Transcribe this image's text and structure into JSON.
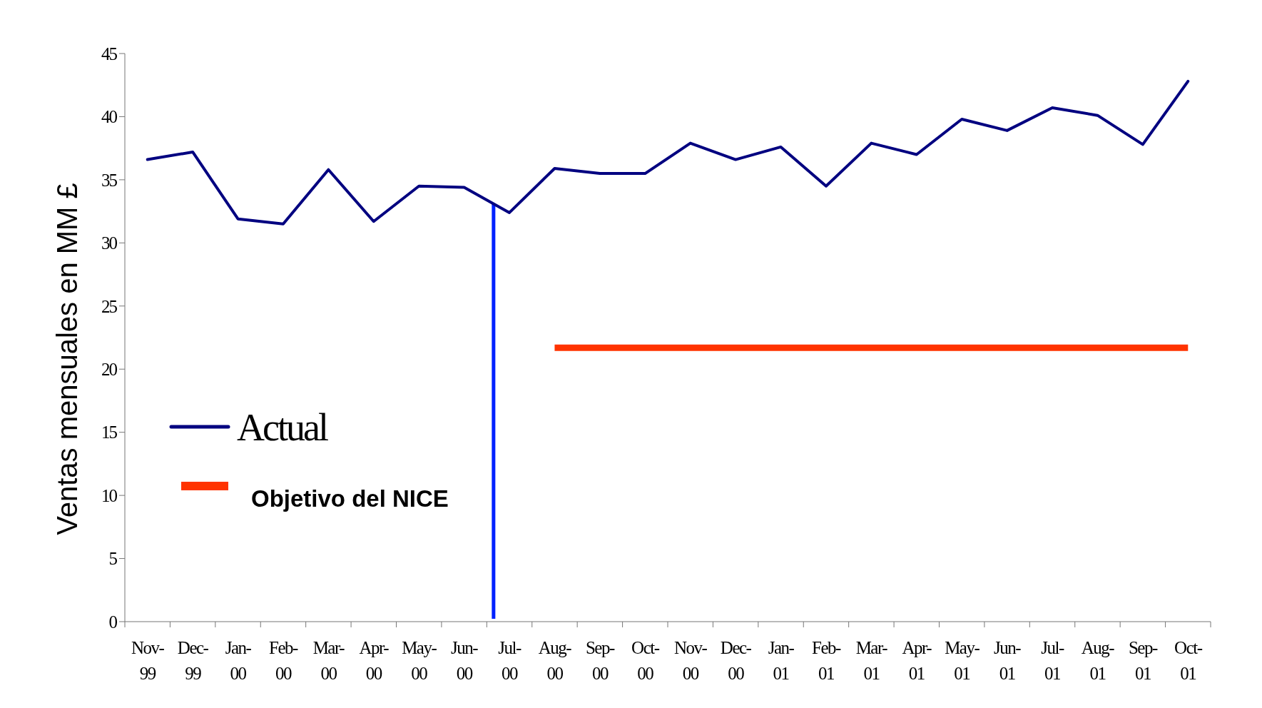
{
  "chart_data": {
    "type": "line",
    "ylabel": "Ventas mensuales en MM £",
    "categories": [
      "Nov-99",
      "Dec-99",
      "Jan-00",
      "Feb-00",
      "Mar-00",
      "Apr-00",
      "May-00",
      "Jun-00",
      "Jul-00",
      "Aug-00",
      "Sep-00",
      "Oct-00",
      "Nov-00",
      "Dec-00",
      "Jan-01",
      "Feb-01",
      "Mar-01",
      "Apr-01",
      "May-01",
      "Jun-01",
      "Jul-01",
      "Aug-01",
      "Sep-01",
      "Oct-01"
    ],
    "series": [
      {
        "name": "Actual",
        "color": "#000080",
        "values": [
          36.6,
          37.2,
          31.9,
          31.5,
          35.8,
          31.7,
          34.5,
          34.4,
          32.4,
          35.9,
          35.5,
          35.5,
          37.9,
          36.6,
          37.6,
          34.5,
          37.9,
          37.0,
          39.8,
          38.9,
          40.7,
          40.1,
          37.8,
          42.8
        ]
      },
      {
        "name": "Objetivo del NICE",
        "color": "#ff3300",
        "values": [
          null,
          null,
          null,
          null,
          null,
          null,
          null,
          null,
          null,
          21.7,
          21.7,
          21.7,
          21.7,
          21.7,
          21.7,
          21.7,
          21.7,
          21.7,
          21.7,
          21.7,
          21.7,
          21.7,
          21.7,
          21.7
        ]
      }
    ],
    "ylim": [
      0,
      45
    ],
    "yticks": [
      0,
      5,
      10,
      15,
      20,
      25,
      30,
      35,
      40,
      45
    ],
    "ref_lines": [
      {
        "axis": "x",
        "value": "Jul-00",
        "color": "#0022ff"
      }
    ],
    "legend": "left",
    "grid": false,
    "marker": "none",
    "line_style": "solid"
  }
}
